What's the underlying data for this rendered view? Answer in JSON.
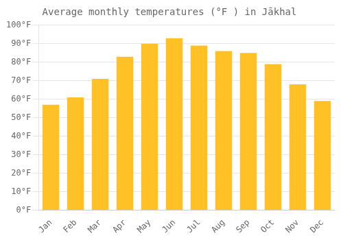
{
  "chart_data": {
    "type": "bar",
    "title": "Average monthly temperatures (°F ) in Jākhal",
    "categories": [
      "Jan",
      "Feb",
      "Mar",
      "Apr",
      "May",
      "Jun",
      "Jul",
      "Aug",
      "Sep",
      "Oct",
      "Nov",
      "Dec"
    ],
    "values": [
      57,
      61,
      71,
      83,
      90,
      93,
      89,
      86,
      85,
      79,
      68,
      59
    ],
    "color": "#FFC125",
    "ylim": [
      0,
      100
    ],
    "yticks": [
      {
        "value": 0,
        "label": "0°F"
      },
      {
        "value": 10,
        "label": "10°F"
      },
      {
        "value": 20,
        "label": "20°F"
      },
      {
        "value": 30,
        "label": "30°F"
      },
      {
        "value": 40,
        "label": "40°F"
      },
      {
        "value": 50,
        "label": "50°F"
      },
      {
        "value": 60,
        "label": "60°F"
      },
      {
        "value": 70,
        "label": "70°F"
      },
      {
        "value": 80,
        "label": "80°F"
      },
      {
        "value": 90,
        "label": "90°F"
      },
      {
        "value": 100,
        "label": "100°F"
      }
    ],
    "grid": true
  }
}
